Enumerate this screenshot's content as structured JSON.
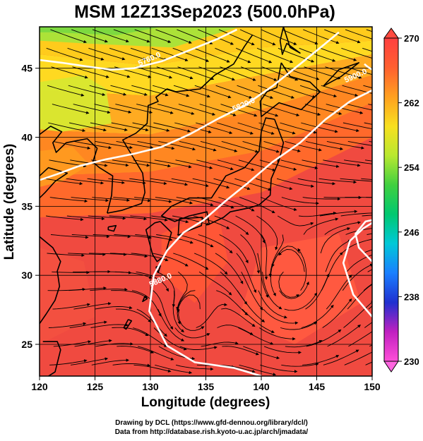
{
  "title": "MSM 12Z13Sep2023 (500.0hPa)",
  "xlabel": "Longitude (degrees)",
  "ylabel": "Latitude  (degrees)",
  "x_ticks": [
    "120",
    "125",
    "130",
    "135",
    "140",
    "145",
    "150"
  ],
  "y_ticks": [
    "25",
    "30",
    "35",
    "40",
    "45"
  ],
  "colorbar": {
    "ticks": [
      "270",
      "262",
      "254",
      "246",
      "238",
      "230"
    ],
    "range": [
      230,
      270
    ],
    "colors": [
      "#ff4fd8",
      "#c020c0",
      "#2030d0",
      "#1a7fff",
      "#00c8d8",
      "#00c870",
      "#40d040",
      "#b8e830",
      "#f8e020",
      "#ffa020",
      "#ff6030",
      "#ff4040"
    ]
  },
  "contour_labels": [
    "5760.0",
    "5820.0",
    "5880.0",
    "5900.0"
  ],
  "credits": [
    "Drawing by DCL (https://www.gfd-dennou.org/library/dcl/)",
    "Data from http://database.rish.kyoto-u.ac.jp/arch/jmadata/"
  ],
  "map": {
    "extent": {
      "lon": [
        120,
        150
      ],
      "lat": [
        22.7,
        48
      ]
    },
    "grid_lon": [
      120,
      125,
      130,
      135,
      140,
      145,
      150
    ],
    "grid_lat": [
      25,
      30,
      35,
      40,
      45
    ],
    "coastlines": [
      [
        [
          141.8,
          45.4
        ],
        [
          142.6,
          44.4
        ],
        [
          144.4,
          44.0
        ],
        [
          145.3,
          43.3
        ],
        [
          143.6,
          42.0
        ],
        [
          141.6,
          42.5
        ],
        [
          140.0,
          41.5
        ],
        [
          139.9,
          42.6
        ],
        [
          140.5,
          43.3
        ],
        [
          141.4,
          43.6
        ],
        [
          141.8,
          45.4
        ]
      ],
      [
        [
          141.2,
          41.3
        ],
        [
          142.0,
          39.6
        ],
        [
          141.6,
          38.3
        ],
        [
          140.9,
          37.0
        ],
        [
          140.8,
          35.8
        ],
        [
          139.8,
          35.1
        ],
        [
          139.0,
          34.9
        ],
        [
          137.2,
          34.6
        ],
        [
          136.6,
          34.2
        ],
        [
          135.3,
          33.7
        ],
        [
          135.1,
          34.6
        ],
        [
          133.5,
          34.3
        ],
        [
          132.2,
          33.9
        ],
        [
          131.0,
          34.3
        ],
        [
          131.9,
          35.0
        ],
        [
          133.5,
          35.6
        ],
        [
          135.5,
          35.6
        ],
        [
          136.8,
          37.2
        ],
        [
          138.5,
          37.8
        ],
        [
          139.8,
          39.0
        ],
        [
          140.0,
          40.4
        ],
        [
          140.4,
          41.4
        ],
        [
          141.2,
          41.3
        ]
      ],
      [
        [
          130.9,
          33.9
        ],
        [
          131.9,
          33.1
        ],
        [
          131.3,
          31.4
        ],
        [
          130.6,
          31.0
        ],
        [
          130.2,
          31.5
        ],
        [
          129.8,
          32.7
        ],
        [
          129.6,
          33.3
        ],
        [
          130.4,
          33.8
        ],
        [
          130.9,
          33.9
        ]
      ],
      [
        [
          132.6,
          34.1
        ],
        [
          134.7,
          34.2
        ],
        [
          134.6,
          33.6
        ],
        [
          133.3,
          33.2
        ],
        [
          132.5,
          32.9
        ],
        [
          132.6,
          34.1
        ]
      ],
      [
        [
          126.1,
          34.5
        ],
        [
          127.4,
          34.7
        ],
        [
          129.2,
          35.2
        ],
        [
          129.5,
          36.0
        ],
        [
          129.3,
          37.4
        ],
        [
          128.4,
          38.6
        ],
        [
          127.5,
          39.8
        ],
        [
          128.7,
          40.3
        ],
        [
          129.7,
          41.0
        ],
        [
          129.8,
          42.3
        ],
        [
          130.7,
          42.6
        ],
        [
          130.5,
          42.9
        ],
        [
          131.5,
          43.5
        ],
        [
          132.3,
          43.3
        ],
        [
          134.5,
          43.5
        ],
        [
          135.8,
          44.5
        ],
        [
          137.5,
          45.3
        ],
        [
          138.5,
          46.6
        ],
        [
          139.2,
          47.4
        ]
      ],
      [
        [
          126.1,
          34.5
        ],
        [
          126.5,
          35.8
        ],
        [
          126.6,
          37.2
        ],
        [
          125.4,
          37.8
        ],
        [
          124.8,
          38.2
        ],
        [
          125.2,
          39.2
        ],
        [
          124.3,
          39.9
        ],
        [
          122.4,
          39.6
        ],
        [
          121.5,
          38.9
        ],
        [
          121.2,
          39.6
        ],
        [
          122.0,
          40.4
        ],
        [
          121.0,
          40.8
        ],
        [
          120.0,
          40.2
        ]
      ],
      [
        [
          120.0,
          37.2
        ],
        [
          120.8,
          37.8
        ],
        [
          122.5,
          37.4
        ],
        [
          121.4,
          36.8
        ],
        [
          120.5,
          36.0
        ],
        [
          120.0,
          35.6
        ]
      ],
      [
        [
          120.0,
          32.8
        ],
        [
          121.2,
          32.0
        ],
        [
          121.9,
          31.0
        ],
        [
          121.6,
          30.3
        ],
        [
          121.8,
          29.2
        ],
        [
          121.4,
          28.2
        ],
        [
          120.6,
          27.2
        ],
        [
          120.0,
          26.5
        ]
      ],
      [
        [
          120.3,
          25.2
        ],
        [
          121.6,
          25.2
        ],
        [
          121.9,
          24.6
        ],
        [
          121.4,
          23.0
        ],
        [
          120.8,
          22.7
        ]
      ],
      [
        [
          142.0,
          48.0
        ],
        [
          142.6,
          46.5
        ],
        [
          143.5,
          46.1
        ],
        [
          142.3,
          46.8
        ],
        [
          141.9,
          46.0
        ],
        [
          141.7,
          47.0
        ],
        [
          142.0,
          48.0
        ]
      ],
      [
        [
          126.2,
          33.5
        ],
        [
          126.9,
          33.6
        ],
        [
          126.7,
          33.2
        ],
        [
          126.2,
          33.3
        ],
        [
          126.2,
          33.5
        ]
      ],
      [
        [
          128.0,
          26.8
        ],
        [
          128.3,
          26.7
        ],
        [
          127.8,
          26.1
        ],
        [
          127.6,
          26.2
        ],
        [
          128.0,
          26.8
        ]
      ],
      [
        [
          129.5,
          28.5
        ],
        [
          129.7,
          28.3
        ],
        [
          129.3,
          28.1
        ],
        [
          129.5,
          28.5
        ]
      ],
      [
        [
          130.5,
          30.6
        ],
        [
          130.9,
          30.7
        ],
        [
          130.7,
          30.2
        ],
        [
          130.5,
          30.6
        ]
      ],
      [
        [
          145.6,
          43.7
        ],
        [
          147.2,
          44.4
        ],
        [
          148.8,
          45.4
        ],
        [
          147.0,
          44.9
        ],
        [
          145.6,
          43.7
        ]
      ],
      [
        [
          141.5,
          38.2
        ],
        [
          141.5,
          38.4
        ],
        [
          141.5,
          38.2
        ]
      ]
    ],
    "contours": [
      {
        "label": "5760.0",
        "label_at": [
          130.0,
          45.5
        ],
        "pts": [
          [
            120,
            45.6
          ],
          [
            122,
            45.4
          ],
          [
            124.5,
            45.1
          ],
          [
            126.5,
            44.9
          ],
          [
            128.5,
            45.0
          ],
          [
            131,
            45.5
          ],
          [
            133.5,
            46.3
          ],
          [
            136,
            47.1
          ],
          [
            137.8,
            47.8
          ]
        ]
      },
      {
        "label": "5820.0",
        "label_at": [
          138.5,
          42.2
        ],
        "pts": [
          [
            120,
            36.9
          ],
          [
            121.5,
            37.3
          ],
          [
            123.5,
            37.9
          ],
          [
            126,
            38.4
          ],
          [
            128.5,
            38.8
          ],
          [
            131,
            39.3
          ],
          [
            133.5,
            40.2
          ],
          [
            136,
            41.3
          ],
          [
            138.5,
            42.3
          ],
          [
            141,
            43.7
          ],
          [
            143.5,
            45.3
          ],
          [
            145.5,
            46.6
          ],
          [
            147,
            47.6
          ]
        ]
      },
      {
        "label": "5880.0",
        "label_at": [
          131.0,
          29.5
        ],
        "pts": [
          [
            140,
            22.7
          ],
          [
            137.5,
            23.3
          ],
          [
            134,
            23.7
          ],
          [
            131.5,
            24.9
          ],
          [
            129.9,
            27.4
          ],
          [
            130.3,
            30.0
          ],
          [
            131.5,
            31.8
          ],
          [
            133.0,
            33.1
          ],
          [
            134.8,
            34.0
          ],
          [
            136.8,
            35.4
          ],
          [
            138.8,
            36.7
          ],
          [
            141,
            38.2
          ],
          [
            143.5,
            39.6
          ],
          [
            145.8,
            41.3
          ],
          [
            148,
            42.6
          ],
          [
            150,
            43.4
          ]
        ]
      },
      {
        "label": "5900.0",
        "label_at": [
          148.6,
          44.3
        ],
        "pts": [
          [
            150,
            44.9
          ],
          [
            149.6,
            45.1
          ],
          [
            149.3,
            45.3
          ]
        ]
      },
      {
        "label": "",
        "label_at": null,
        "pts": [
          [
            150,
            27.0
          ],
          [
            148.3,
            28.6
          ],
          [
            147.4,
            30.9
          ],
          [
            148.0,
            32.5
          ],
          [
            149.2,
            33.4
          ],
          [
            150,
            33.8
          ]
        ]
      },
      {
        "label": "",
        "label_at": null,
        "pts": [
          [
            150,
            31.0
          ],
          [
            148.8,
            32.0
          ],
          [
            148.5,
            33.0
          ],
          [
            149.4,
            33.9
          ],
          [
            150,
            34.0
          ]
        ]
      }
    ],
    "wind_field": "cyclonic vortex near 142.5E 29.5N; westerlies north of 35N"
  }
}
